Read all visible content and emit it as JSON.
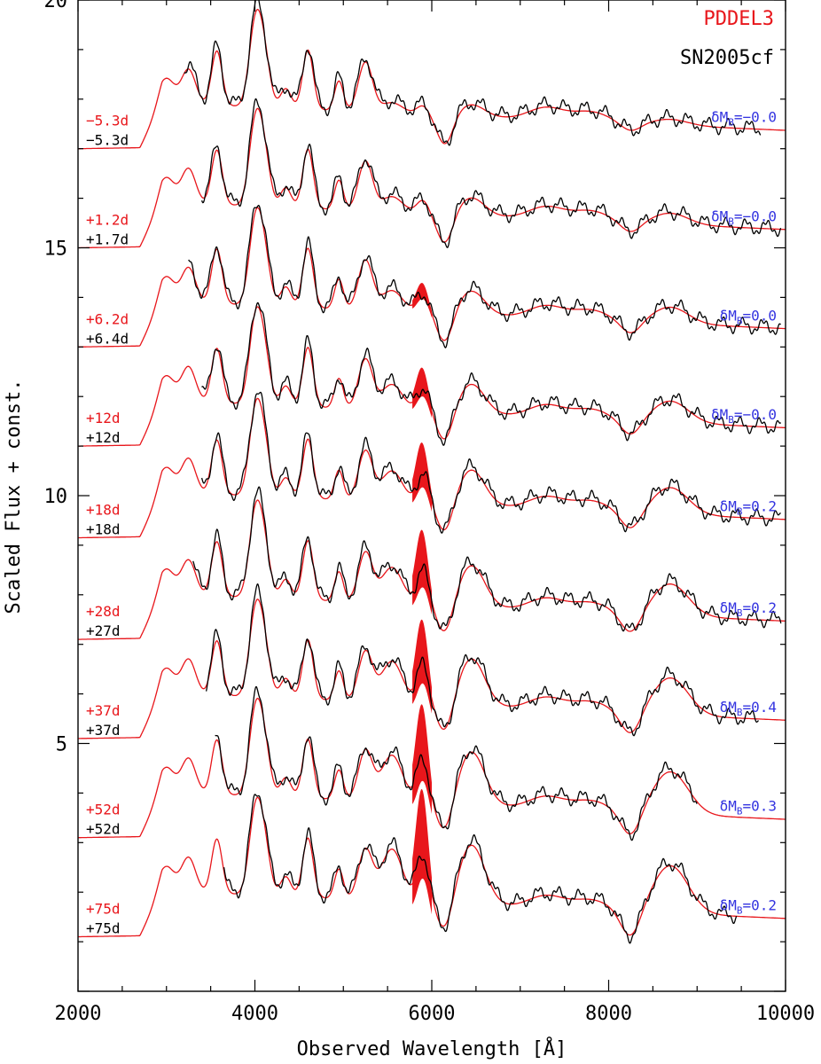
{
  "chart_data": {
    "type": "line",
    "xlabel": "Observed Wavelength  [Å]",
    "ylabel": "Scaled Flux + const.",
    "xlim": [
      2000,
      10000
    ],
    "ylim": [
      0,
      20
    ],
    "xticks": [
      2000,
      4000,
      6000,
      8000,
      10000
    ],
    "yticks": [
      5,
      10,
      15,
      20
    ],
    "legend": {
      "position": "top-right",
      "entries": [
        {
          "label": "PDDEL3",
          "color": "#e8161b"
        },
        {
          "label": "SN2005cf",
          "color": "#000000"
        }
      ]
    },
    "colors": {
      "model": "#e8161b",
      "observed": "#000000",
      "delta": "#3434e0",
      "band": "#e8161b"
    },
    "epochs": [
      {
        "model_label": "−5.3d",
        "obs_label": "−5.3d",
        "dmb_value": "=−0.0",
        "offset": 17.0,
        "obs_start": 3200,
        "obs_end": 9720,
        "band": 0
      },
      {
        "model_label": "+1.2d",
        "obs_label": "+1.7d",
        "dmb_value": "=−0.0",
        "offset": 15.0,
        "obs_start": 3400,
        "obs_end": 9950,
        "band": 0
      },
      {
        "model_label": "+6.2d",
        "obs_label": "+6.4d",
        "dmb_value": "=0.0",
        "offset": 13.0,
        "obs_start": 3250,
        "obs_end": 9950,
        "band": 0.25
      },
      {
        "model_label": "+12d",
        "obs_label": "+12d",
        "dmb_value": "=−0.0",
        "offset": 11.0,
        "obs_start": 3400,
        "obs_end": 9950,
        "band": 0.45
      },
      {
        "model_label": "+18d",
        "obs_label": "+18d",
        "dmb_value": "=0.2",
        "offset": 9.15,
        "obs_start": 3400,
        "obs_end": 9950,
        "band": 0.7
      },
      {
        "model_label": "+28d",
        "obs_label": "+27d",
        "dmb_value": "=0.2",
        "offset": 7.1,
        "obs_start": 3300,
        "obs_end": 9950,
        "band": 0.9
      },
      {
        "model_label": "+37d",
        "obs_label": "+37d",
        "dmb_value": "=0.4",
        "offset": 5.1,
        "obs_start": 3450,
        "obs_end": 9700,
        "band": 1.0
      },
      {
        "model_label": "+52d",
        "obs_label": "+52d",
        "dmb_value": "=0.3",
        "offset": 3.1,
        "obs_start": 3550,
        "obs_end": 9000,
        "band": 1.2
      },
      {
        "model_label": "+75d",
        "obs_label": "+75d",
        "dmb_value": "=0.2",
        "offset": 1.1,
        "obs_start": 3650,
        "obs_end": 9450,
        "band": 1.4
      }
    ]
  }
}
